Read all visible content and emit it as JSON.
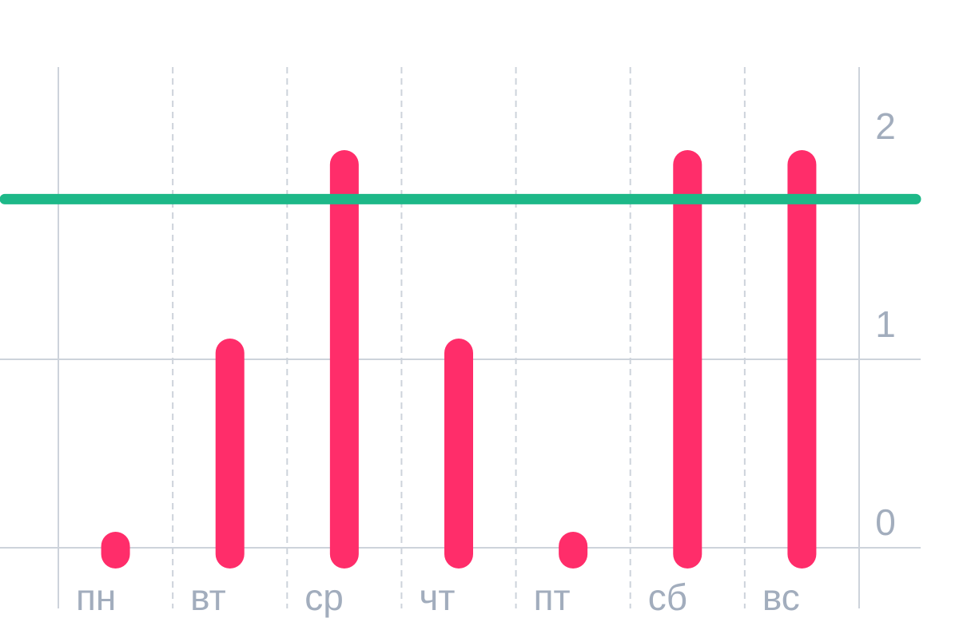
{
  "chart_data": {
    "type": "bar",
    "categories": [
      "пн",
      "вт",
      "ср",
      "чт",
      "пт",
      "сб",
      "вс"
    ],
    "values": [
      0,
      1,
      2,
      1,
      0,
      2,
      2
    ],
    "reference_line": 1.85,
    "y_ticks": [
      "0",
      "1",
      "2"
    ],
    "ylim": [
      0,
      2.3
    ],
    "grid": true,
    "colors": {
      "bar": "#ff2d6a",
      "reference": "#1db888",
      "grid": "#cdd3db",
      "tick_text": "#a2adbd"
    }
  }
}
